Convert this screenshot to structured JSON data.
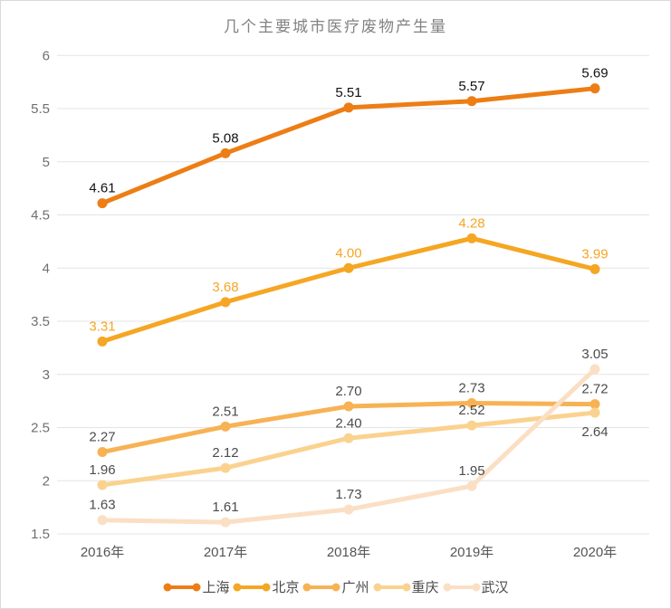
{
  "title": "几个主要城市医疗废物产生量",
  "chart_data": {
    "type": "line",
    "title": "几个主要城市医疗废物产生量",
    "categories": [
      "2016年",
      "2017年",
      "2018年",
      "2019年",
      "2020年"
    ],
    "series": [
      {
        "id": "shanghai",
        "name": "上海",
        "values": [
          4.61,
          5.08,
          5.51,
          5.57,
          5.69
        ],
        "color": "#ED7D15",
        "label_color": "#111111",
        "label_below_indices": []
      },
      {
        "id": "beijing",
        "name": "北京",
        "values": [
          3.31,
          3.68,
          4.0,
          4.28,
          3.99
        ],
        "color": "#F5A623",
        "label_color": "#F5A623",
        "label_below_indices": []
      },
      {
        "id": "guangzhou",
        "name": "广州",
        "values": [
          2.27,
          2.51,
          2.7,
          2.73,
          2.72
        ],
        "color": "#F7B254",
        "label_color": "#4c4c4c",
        "label_below_indices": []
      },
      {
        "id": "chongqing",
        "name": "重庆",
        "values": [
          1.96,
          2.12,
          2.4,
          2.52,
          2.64
        ],
        "color": "#FAD28F",
        "label_color": "#4c4c4c",
        "label_below_indices": [
          4
        ]
      },
      {
        "id": "wuhan",
        "name": "武汉",
        "values": [
          1.63,
          1.61,
          1.73,
          1.95,
          3.05
        ],
        "color": "#FBDFC4",
        "label_color": "#4c4c4c",
        "label_below_indices": []
      }
    ],
    "ylim": [
      1.5,
      6
    ],
    "yticks": [
      {
        "value": 1.5,
        "label": "1.5"
      },
      {
        "value": 2,
        "label": "2"
      },
      {
        "value": 2.5,
        "label": "2.5"
      },
      {
        "value": 3,
        "label": "3"
      },
      {
        "value": 3.5,
        "label": "3.5"
      },
      {
        "value": 4,
        "label": "4"
      },
      {
        "value": 4.5,
        "label": "4.5"
      },
      {
        "value": 5,
        "label": "5"
      },
      {
        "value": 5.5,
        "label": "5.5"
      },
      {
        "value": 6,
        "label": "6"
      }
    ],
    "grid": true,
    "legend_position": "bottom",
    "value_label_decimals": 2
  },
  "colors": {
    "gridline": "#e4e4e4",
    "y_tick_text": "#6f6f6f",
    "x_tick_text": "#555555",
    "title_text": "#828282",
    "legend_text": "#4c4c4c",
    "frame_border": "#d9d9d9",
    "background": "#ffffff"
  }
}
